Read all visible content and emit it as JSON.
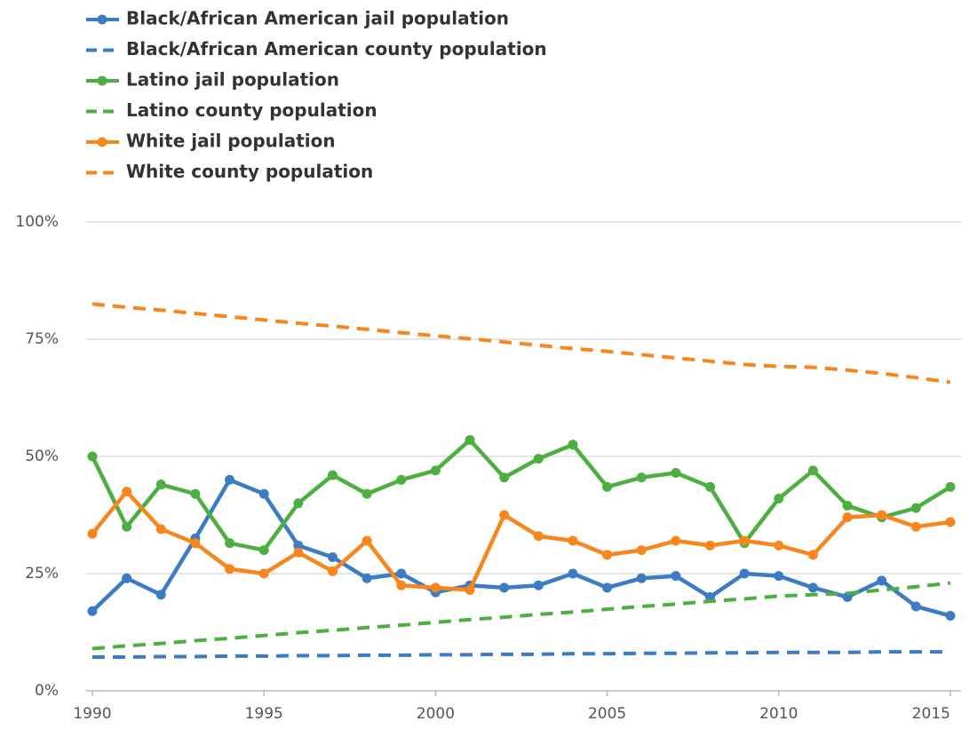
{
  "chart_data": {
    "type": "line",
    "x": [
      1990,
      1991,
      1992,
      1993,
      1994,
      1995,
      1996,
      1997,
      1998,
      1999,
      2000,
      2001,
      2002,
      2003,
      2004,
      2005,
      2006,
      2007,
      2008,
      2009,
      2010,
      2011,
      2012,
      2013,
      2014,
      2015
    ],
    "xlim": [
      1990,
      2015
    ],
    "xticks": [
      1990,
      1995,
      2000,
      2005,
      2010,
      2015
    ],
    "ylim": [
      0,
      100
    ],
    "yticks": [
      {
        "value": 0,
        "label": "0%"
      },
      {
        "value": 25,
        "label": "25%"
      },
      {
        "value": 50,
        "label": "50%"
      },
      {
        "value": 75,
        "label": "75%"
      },
      {
        "value": 100,
        "label": "100%"
      }
    ],
    "grid": true,
    "legend": "top-left",
    "series": [
      {
        "name": "Black/African American jail population",
        "color": "#3b7cc4",
        "dashed": false,
        "markers": true,
        "values": [
          17,
          24,
          20.5,
          32.5,
          45,
          42,
          31,
          28.5,
          24,
          25,
          21,
          22.5,
          22,
          22.5,
          25,
          22,
          24,
          24.5,
          20,
          25,
          24.5,
          22,
          20,
          23.5,
          18,
          16
        ]
      },
      {
        "name": "Black/African American county population",
        "color": "#3b7cc4",
        "dashed": true,
        "markers": false,
        "values": [
          7.2,
          7.2,
          7.3,
          7.3,
          7.4,
          7.4,
          7.5,
          7.5,
          7.6,
          7.6,
          7.7,
          7.7,
          7.8,
          7.8,
          7.9,
          7.9,
          8,
          8,
          8.1,
          8.1,
          8.2,
          8.2,
          8.2,
          8.3,
          8.3,
          8.3
        ]
      },
      {
        "name": "Latino jail population",
        "color": "#4caf3f",
        "dashed": false,
        "markers": true,
        "values": [
          50,
          35,
          44,
          42,
          31.5,
          30,
          40,
          46,
          42,
          45,
          47,
          53.5,
          45.5,
          49.5,
          52.5,
          43.5,
          45.5,
          46.5,
          43.5,
          31.5,
          41,
          47,
          39.5,
          37,
          39,
          43.5
        ]
      },
      {
        "name": "Latino county population",
        "color": "#4caf3f",
        "dashed": true,
        "markers": false,
        "values": [
          9,
          9.6,
          10.1,
          10.7,
          11.2,
          11.8,
          12.4,
          12.9,
          13.5,
          14,
          14.6,
          15.2,
          15.7,
          16.3,
          16.8,
          17.4,
          18,
          18.5,
          19.1,
          19.6,
          20.2,
          20.5,
          20.8,
          21.5,
          22.2,
          23
        ]
      },
      {
        "name": "White jail population",
        "color": "#f7861c",
        "dashed": false,
        "markers": true,
        "values": [
          33.5,
          42.5,
          34.5,
          31.5,
          26,
          25,
          29.5,
          25.5,
          32,
          22.5,
          22,
          21.5,
          37.5,
          33,
          32,
          29,
          30,
          32,
          31,
          32,
          31,
          29,
          37,
          37.5,
          35,
          36
        ]
      },
      {
        "name": "White county population",
        "color": "#f7861c",
        "dashed": true,
        "markers": false,
        "values": [
          82.5,
          81.8,
          81.2,
          80.5,
          79.8,
          79.1,
          78.4,
          77.8,
          77.1,
          76.4,
          75.7,
          75.1,
          74.4,
          73.7,
          73,
          72.4,
          71.7,
          71,
          70.3,
          69.6,
          69.2,
          69,
          68.4,
          67.7,
          66.8,
          65.8
        ]
      }
    ]
  }
}
